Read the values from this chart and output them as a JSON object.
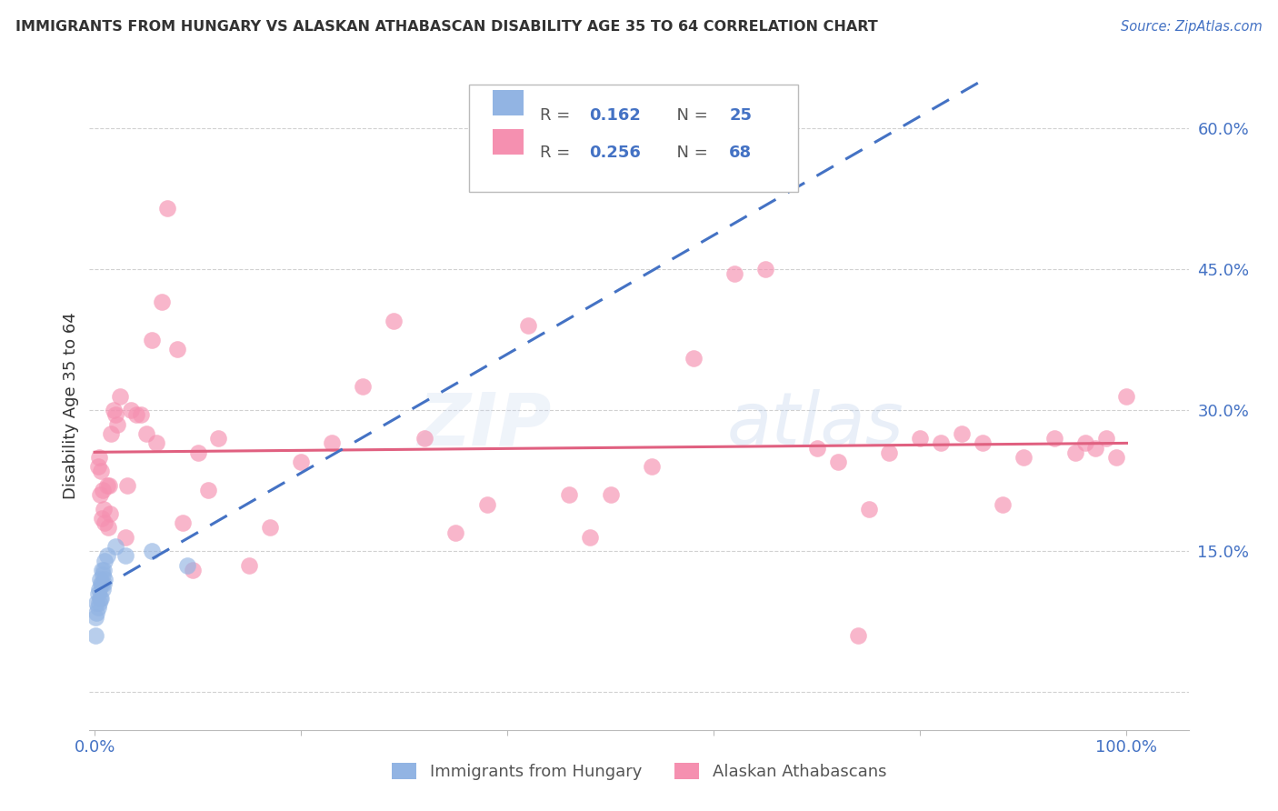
{
  "title": "IMMIGRANTS FROM HUNGARY VS ALASKAN ATHABASCAN DISABILITY AGE 35 TO 64 CORRELATION CHART",
  "source": "Source: ZipAtlas.com",
  "ylabel_label": "Disability Age 35 to 64",
  "hungary_R": 0.162,
  "hungary_N": 25,
  "athabascan_R": 0.256,
  "athabascan_N": 68,
  "hungary_color": "#92b4e3",
  "athabascan_color": "#f590b0",
  "hungary_line_color": "#4472C4",
  "athabascan_line_color": "#e06080",
  "watermark": "ZIPatlas",
  "xlim": [
    -0.005,
    1.06
  ],
  "ylim": [
    -0.04,
    0.65
  ],
  "hungary_x": [
    0.001,
    0.001,
    0.002,
    0.002,
    0.003,
    0.003,
    0.004,
    0.004,
    0.005,
    0.005,
    0.006,
    0.006,
    0.007,
    0.007,
    0.008,
    0.008,
    0.009,
    0.009,
    0.01,
    0.01,
    0.012,
    0.02,
    0.03,
    0.055,
    0.09
  ],
  "hungary_y": [
    0.08,
    0.06,
    0.095,
    0.085,
    0.105,
    0.09,
    0.11,
    0.095,
    0.12,
    0.1,
    0.115,
    0.1,
    0.13,
    0.115,
    0.125,
    0.11,
    0.13,
    0.115,
    0.14,
    0.12,
    0.145,
    0.155,
    0.145,
    0.15,
    0.135
  ],
  "athabascan_x": [
    0.003,
    0.004,
    0.005,
    0.006,
    0.007,
    0.008,
    0.009,
    0.01,
    0.012,
    0.013,
    0.014,
    0.015,
    0.016,
    0.018,
    0.02,
    0.022,
    0.025,
    0.03,
    0.032,
    0.035,
    0.04,
    0.045,
    0.05,
    0.055,
    0.06,
    0.065,
    0.07,
    0.08,
    0.085,
    0.095,
    0.11,
    0.12,
    0.15,
    0.17,
    0.2,
    0.23,
    0.26,
    0.29,
    0.32,
    0.35,
    0.38,
    0.42,
    0.46,
    0.5,
    0.54,
    0.58,
    0.62,
    0.65,
    0.7,
    0.72,
    0.74,
    0.77,
    0.8,
    0.82,
    0.84,
    0.86,
    0.88,
    0.9,
    0.93,
    0.95,
    0.96,
    0.97,
    0.98,
    0.99,
    1.0,
    0.75,
    0.48,
    0.1
  ],
  "athabascan_y": [
    0.24,
    0.25,
    0.21,
    0.235,
    0.185,
    0.215,
    0.195,
    0.18,
    0.22,
    0.175,
    0.22,
    0.19,
    0.275,
    0.3,
    0.295,
    0.285,
    0.315,
    0.165,
    0.22,
    0.3,
    0.295,
    0.295,
    0.275,
    0.375,
    0.265,
    0.415,
    0.515,
    0.365,
    0.18,
    0.13,
    0.215,
    0.27,
    0.135,
    0.175,
    0.245,
    0.265,
    0.325,
    0.395,
    0.27,
    0.17,
    0.2,
    0.39,
    0.21,
    0.21,
    0.24,
    0.355,
    0.445,
    0.45,
    0.26,
    0.245,
    0.06,
    0.255,
    0.27,
    0.265,
    0.275,
    0.265,
    0.2,
    0.25,
    0.27,
    0.255,
    0.265,
    0.26,
    0.27,
    0.25,
    0.315,
    0.195,
    0.165,
    0.255
  ]
}
